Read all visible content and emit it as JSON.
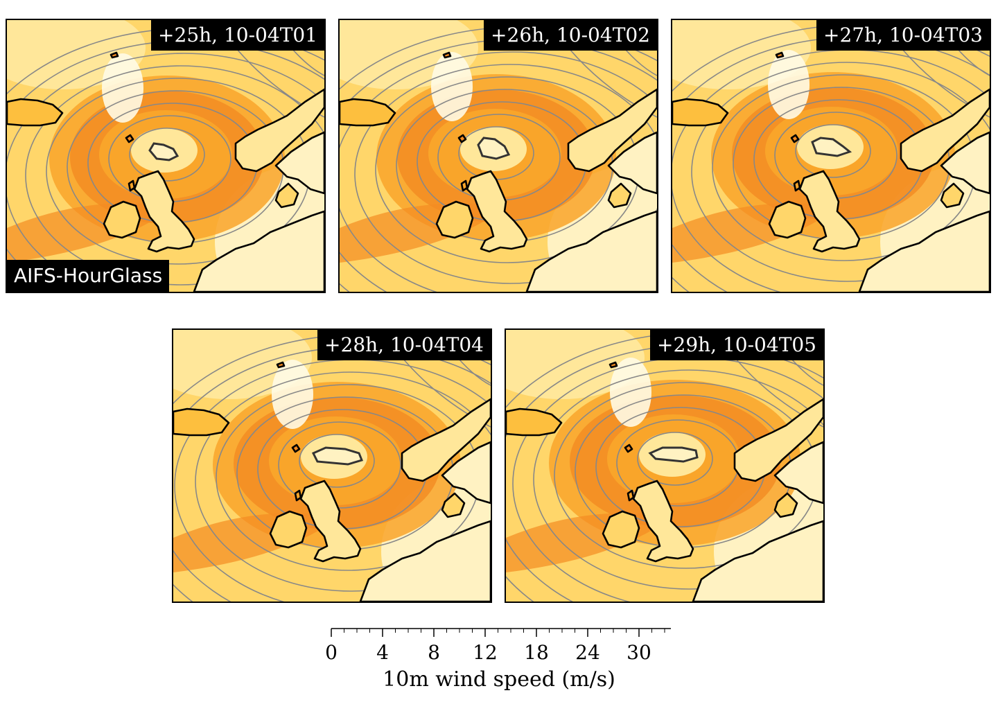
{
  "panels": [
    {
      "time_label": "+25h, 10-04T01",
      "model_label": "AIFS-HourGlass",
      "low_center": [
        227,
        188
      ],
      "cyclone_shape": [
        [
          206,
          188
        ],
        [
          212,
          178
        ],
        [
          226,
          180
        ],
        [
          240,
          186
        ],
        [
          246,
          196
        ],
        [
          234,
          202
        ],
        [
          216,
          200
        ]
      ]
    },
    {
      "time_label": "+26h, 10-04T02",
      "model_label": "",
      "low_center": [
        222,
        186
      ],
      "cyclone_shape": [
        [
          200,
          180
        ],
        [
          208,
          170
        ],
        [
          224,
          172
        ],
        [
          238,
          182
        ],
        [
          244,
          194
        ],
        [
          226,
          200
        ],
        [
          206,
          196
        ]
      ]
    },
    {
      "time_label": "+27h, 10-04T03",
      "model_label": "",
      "low_center": [
        228,
        183
      ],
      "cyclone_shape": [
        [
          202,
          176
        ],
        [
          214,
          170
        ],
        [
          232,
          172
        ],
        [
          246,
          182
        ],
        [
          256,
          190
        ],
        [
          238,
          196
        ],
        [
          208,
          192
        ]
      ]
    },
    {
      "time_label": "+28h, 10-04T04",
      "model_label": "",
      "low_center": [
        232,
        183
      ],
      "cyclone_shape": [
        [
          202,
          178
        ],
        [
          220,
          170
        ],
        [
          248,
          172
        ],
        [
          268,
          178
        ],
        [
          272,
          188
        ],
        [
          252,
          194
        ],
        [
          208,
          190
        ]
      ]
    },
    {
      "time_label": "+29h, 10-04T05",
      "model_label": "",
      "low_center": [
        240,
        180
      ],
      "cyclone_shape": [
        [
          208,
          178
        ],
        [
          226,
          170
        ],
        [
          254,
          170
        ],
        [
          274,
          174
        ],
        [
          276,
          184
        ],
        [
          256,
          190
        ],
        [
          216,
          186
        ]
      ]
    }
  ],
  "colorbar": {
    "label": "10m wind speed (m/s)",
    "ticks": [
      "0",
      "4",
      "8",
      "12",
      "18",
      "24",
      "30"
    ],
    "colors": [
      "#ffffff",
      "#fffbe6",
      "#fff2c2",
      "#ffe79a",
      "#ffd66a",
      "#fdbf3e",
      "#f9a52a",
      "#f38b22",
      "#e8701e"
    ]
  }
}
